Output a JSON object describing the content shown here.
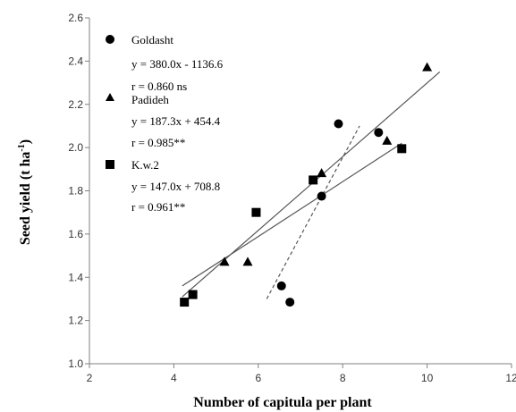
{
  "chart_data": {
    "type": "scatter",
    "xlabel": "Number of capitula per plant",
    "ylabel_main": "Seed yield (t ha",
    "ylabel_sup": "-1",
    "ylabel_close": ")",
    "xlim": [
      2,
      12
    ],
    "ylim": [
      1.0,
      2.6
    ],
    "x_ticks": [
      "2",
      "4",
      "6",
      "8",
      "10",
      "12"
    ],
    "y_ticks": [
      "1.0",
      "1.2",
      "1.4",
      "1.6",
      "1.8",
      "2.0",
      "2.2",
      "2.4",
      "2.6"
    ],
    "grid": false,
    "legend_position": "top-left",
    "series": [
      {
        "name": "Goldasht",
        "marker": "circle",
        "equation": "y = 380.0x - 1136.6",
        "r": "r = 0.860 ns",
        "x": [
          6.55,
          6.75,
          7.5,
          7.9,
          8.85
        ],
        "y": [
          1.36,
          1.285,
          1.775,
          2.11,
          2.07
        ],
        "fit_line": {
          "style": "dashed",
          "x": [
            6.2,
            8.4
          ],
          "y": [
            1.3,
            2.1
          ]
        }
      },
      {
        "name": "Padideh",
        "marker": "triangle",
        "equation": "y = 187.3x + 454.4",
        "r": "r = 0.985**",
        "x": [
          5.2,
          5.75,
          7.5,
          9.05,
          10.0
        ],
        "y": [
          1.47,
          1.47,
          1.88,
          2.03,
          2.37
        ],
        "fit_line": {
          "style": "solid",
          "x": [
            4.2,
            10.3
          ],
          "y": [
            1.31,
            2.35
          ]
        }
      },
      {
        "name": "K.w.2",
        "marker": "square",
        "equation": "y = 147.0x + 708.8",
        "r": "r = 0.961**",
        "x": [
          4.25,
          4.45,
          5.95,
          7.3,
          9.4
        ],
        "y": [
          1.285,
          1.32,
          1.7,
          1.85,
          1.995
        ],
        "fit_line": {
          "style": "solid",
          "x": [
            4.2,
            9.4
          ],
          "y": [
            1.36,
            2.02
          ]
        }
      }
    ]
  },
  "colors": {
    "marker": "#000000",
    "axis": "#808080",
    "fit_line": "#555555"
  }
}
